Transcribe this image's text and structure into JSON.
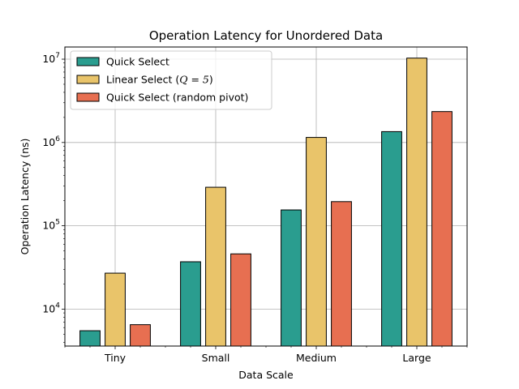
{
  "chart_data": {
    "type": "bar",
    "title": "Operation Latency for Unordered Data",
    "xlabel": "Data Scale",
    "ylabel": "Operation Latency (ns)",
    "yscale": "log",
    "ylim": [
      3600,
      14000000
    ],
    "grid": true,
    "legend_position": "top-left",
    "categories": [
      "Tiny",
      "Small",
      "Medium",
      "Large"
    ],
    "y_ticks": [
      {
        "value": 10000,
        "base": "10",
        "exp": "4"
      },
      {
        "value": 100000,
        "base": "10",
        "exp": "5"
      },
      {
        "value": 1000000,
        "base": "10",
        "exp": "6"
      },
      {
        "value": 10000000,
        "base": "10",
        "exp": "7"
      }
    ],
    "series": [
      {
        "name": "Quick Select",
        "color": "#2a9d8f",
        "values": [
          5500,
          37000,
          155000,
          1350000
        ]
      },
      {
        "name": "Linear Select (Q = 5)",
        "name_prefix": "Linear Select (",
        "name_math": "Q = 5",
        "name_suffix": ")",
        "color": "#e9c46a",
        "values": [
          27000,
          290000,
          1150000,
          10300000
        ]
      },
      {
        "name": "Quick Select (random pivot)",
        "color": "#e76f51",
        "values": [
          6500,
          46000,
          195000,
          2350000
        ]
      }
    ]
  }
}
